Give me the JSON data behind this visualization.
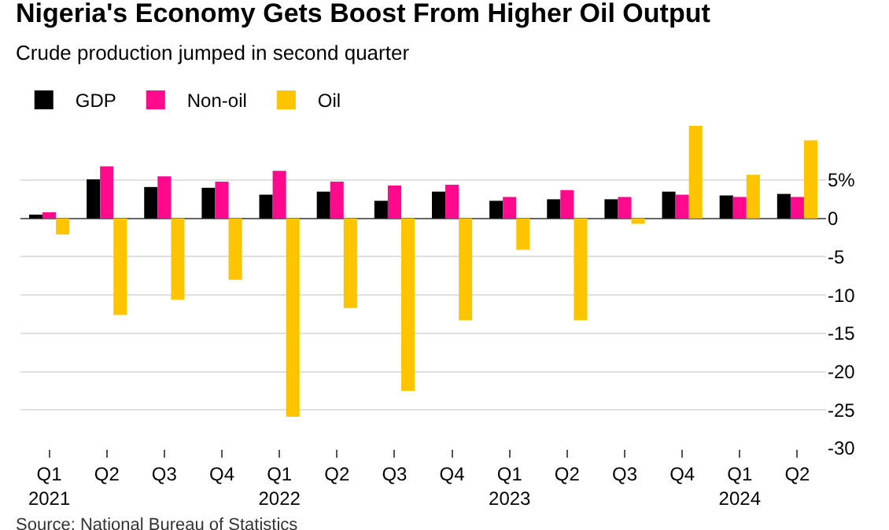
{
  "chart_data": {
    "type": "bar",
    "title": "Nigeria's Economy Gets Boost From Higher Oil Output",
    "subtitle": "Crude production jumped in second quarter",
    "categories": [
      "Q1\n2021",
      "Q2",
      "Q3",
      "Q4",
      "Q1\n2022",
      "Q2",
      "Q3",
      "Q4",
      "Q1\n2023",
      "Q2",
      "Q3",
      "Q4",
      "Q1\n2024",
      "Q2"
    ],
    "series": [
      {
        "name": "GDP",
        "color": "#000000",
        "values": [
          0.5,
          5.1,
          4.1,
          4.0,
          3.1,
          3.5,
          2.3,
          3.5,
          2.3,
          2.5,
          2.5,
          3.5,
          3.0,
          3.2
        ]
      },
      {
        "name": "Non-oil",
        "color": "#ff0a8c",
        "values": [
          0.8,
          6.8,
          5.5,
          4.8,
          6.2,
          4.8,
          4.3,
          4.4,
          2.8,
          3.7,
          2.8,
          3.1,
          2.8,
          2.8
        ]
      },
      {
        "name": "Oil",
        "color": "#ffc400",
        "values": [
          -2.1,
          -12.6,
          -10.6,
          -8.0,
          -25.9,
          -11.7,
          -22.5,
          -13.3,
          -4.1,
          -13.3,
          -0.7,
          12.1,
          5.7,
          10.2
        ]
      }
    ],
    "ylim": [
      -30,
      12.5
    ],
    "yticks": [
      {
        "value": 5,
        "label": "5%"
      },
      0,
      -5,
      -10,
      -15,
      -20,
      -25,
      -30
    ],
    "grid": "y",
    "legend": "top left",
    "annotations": [
      "Source: National Bureau of Statistics"
    ]
  }
}
